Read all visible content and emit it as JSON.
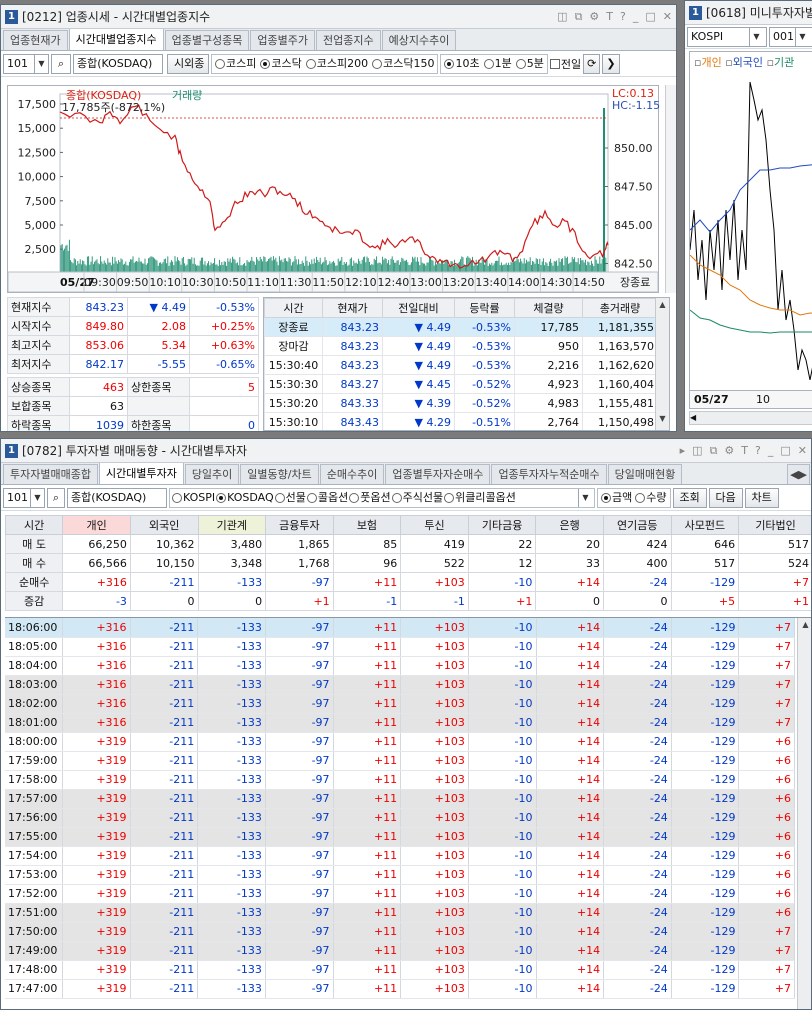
{
  "win1": {
    "no": "1",
    "title": "[0212] 업종시세 - 시간대별업종지수",
    "tabs": [
      "업종현재가",
      "시간대별업종지수",
      "업종별구성종목",
      "업종별주가",
      "전업종지수",
      "예상지수추이"
    ],
    "code": "101",
    "search_name": "종합(KOSDAQ)",
    "market_button": "시외종",
    "radios_market": [
      {
        "label": "코스피",
        "on": false
      },
      {
        "label": "코스닥",
        "on": true
      },
      {
        "label": "코스피200",
        "on": false
      },
      {
        "label": "코스닥150",
        "on": false
      }
    ],
    "radios_interval": [
      {
        "label": "10초",
        "on": true
      },
      {
        "label": "1분",
        "on": false
      },
      {
        "label": "5분",
        "on": false
      }
    ],
    "prev_day_label": "전일",
    "chart": {
      "legend_name": "종합(KOSDAQ)",
      "legend_volume": "거래량",
      "current_label": "17,785주(-872,1%)",
      "lc": "LC:0.13",
      "hc": "HC:-1.15",
      "left_ticks": [
        "17,500",
        "15,000",
        "12,500",
        "10,000",
        "7,500",
        "5,000",
        "2,500"
      ],
      "right_ticks": [
        "850.00",
        "847.50",
        "845.00",
        "842.50"
      ],
      "x_date": "05/27",
      "x_ticks": [
        "09:30",
        "09:50",
        "10:10",
        "10:30",
        "10:50",
        "11:10",
        "11:30",
        "11:50",
        "12:10",
        "12:40",
        "13:00",
        "13:20",
        "13:40",
        "14:00",
        "14:30",
        "14:50"
      ],
      "x_end": "장종료"
    },
    "summary": [
      {
        "label": "현재지수",
        "val": "843.23",
        "arrow": "▼",
        "chg": "4.49",
        "pct": "-0.53%",
        "color": "dn"
      },
      {
        "label": "시작지수",
        "val": "849.80",
        "arrow": "",
        "chg": "2.08",
        "pct": "+0.25%",
        "color": "up"
      },
      {
        "label": "최고지수",
        "val": "853.06",
        "arrow": "",
        "chg": "5.34",
        "pct": "+0.63%",
        "color": "up"
      },
      {
        "label": "최저지수",
        "val": "842.17",
        "arrow": "",
        "chg": "-5.55",
        "pct": "-0.65%",
        "color": "dn"
      }
    ],
    "counts": [
      {
        "l1": "상승종목",
        "v1": "463",
        "l2": "상한종목",
        "v2": "5",
        "c1": "up",
        "c2": "up"
      },
      {
        "l1": "보합종목",
        "v1": "63",
        "l2": "",
        "v2": "",
        "c1": "",
        "c2": ""
      },
      {
        "l1": "하락종목",
        "v1": "1039",
        "l2": "하한종목",
        "v2": "0",
        "c1": "dn",
        "c2": "dn"
      }
    ],
    "table_headers": [
      "시간",
      "현재가",
      "전일대비",
      "등락률",
      "체결량",
      "총거래량"
    ],
    "table_rows": [
      {
        "t": "장종료",
        "p": "843.23",
        "a": "▼",
        "d": "4.49",
        "r": "-0.53%",
        "v": "17,785",
        "tv": "1,181,355"
      },
      {
        "t": "장마감",
        "p": "843.23",
        "a": "▼",
        "d": "4.49",
        "r": "-0.53%",
        "v": "950",
        "tv": "1,163,570"
      },
      {
        "t": "15:30:40",
        "p": "843.23",
        "a": "▼",
        "d": "4.49",
        "r": "-0.53%",
        "v": "2,216",
        "tv": "1,162,620"
      },
      {
        "t": "15:30:30",
        "p": "843.27",
        "a": "▼",
        "d": "4.45",
        "r": "-0.52%",
        "v": "4,923",
        "tv": "1,160,404"
      },
      {
        "t": "15:30:20",
        "p": "843.33",
        "a": "▼",
        "d": "4.39",
        "r": "-0.52%",
        "v": "4,983",
        "tv": "1,155,481"
      },
      {
        "t": "15:30:10",
        "p": "843.43",
        "a": "▼",
        "d": "4.29",
        "r": "-0.51%",
        "v": "2,764",
        "tv": "1,150,498"
      }
    ]
  },
  "win2": {
    "no": "1",
    "title": "[0618] 미니투자자별",
    "index": "KOSPI",
    "code": "001",
    "legend": [
      "개인",
      "외국인",
      "기관"
    ],
    "x_date": "05/27",
    "x_tick": "10"
  },
  "win3": {
    "no": "1",
    "title": "[0782] 투자자별 매매동향 - 시간대별투자자",
    "tabs": [
      "투자자별매매종합",
      "시간대별투자자",
      "당일추이",
      "일별동향/차트",
      "순매수추이",
      "업종별투자자순매수",
      "업종투자자누적순매수",
      "당일매매현황"
    ],
    "code": "101",
    "search_name": "종합(KOSDAQ)",
    "radios_market": [
      {
        "label": "KOSPI",
        "on": false
      },
      {
        "label": "KOSDAQ",
        "on": true
      },
      {
        "label": "선물",
        "on": false
      },
      {
        "label": "콜옵션",
        "on": false
      },
      {
        "label": "풋옵션",
        "on": false
      },
      {
        "label": "주식선물",
        "on": false
      },
      {
        "label": "위클리콜옵션",
        "on": false
      }
    ],
    "radios_unit": [
      {
        "label": "금액",
        "on": true
      },
      {
        "label": "수량",
        "on": false
      }
    ],
    "buttons": [
      "조회",
      "다음",
      "차트"
    ],
    "headers": [
      "시간",
      "개인",
      "외국인",
      "기관계",
      "금융투자",
      "보험",
      "투신",
      "기타금융",
      "은행",
      "연기금등",
      "사모펀드",
      "기타법인"
    ],
    "summary_rows": [
      [
        "매 도",
        "66,250",
        "10,362",
        "3,480",
        "1,865",
        "85",
        "419",
        "22",
        "20",
        "424",
        "646",
        "517"
      ],
      [
        "매 수",
        "66,566",
        "10,150",
        "3,348",
        "1,768",
        "96",
        "522",
        "12",
        "33",
        "400",
        "517",
        "524"
      ],
      [
        "순매수",
        "+316",
        "-211",
        "-133",
        "-97",
        "+11",
        "+103",
        "-10",
        "+14",
        "-24",
        "-129",
        "+7"
      ],
      [
        "증감",
        "-3",
        "0",
        "0",
        "+1",
        "-1",
        "-1",
        "+1",
        "0",
        "0",
        "+5",
        "+1"
      ]
    ],
    "rows": [
      [
        "18:06:00",
        "+316",
        "-211",
        "-133",
        "-97",
        "+11",
        "+103",
        "-10",
        "+14",
        "-24",
        "-129",
        "+7"
      ],
      [
        "18:05:00",
        "+316",
        "-211",
        "-133",
        "-97",
        "+11",
        "+103",
        "-10",
        "+14",
        "-24",
        "-129",
        "+7"
      ],
      [
        "18:04:00",
        "+316",
        "-211",
        "-133",
        "-97",
        "+11",
        "+103",
        "-10",
        "+14",
        "-24",
        "-129",
        "+7"
      ],
      [
        "18:03:00",
        "+316",
        "-211",
        "-133",
        "-97",
        "+11",
        "+103",
        "-10",
        "+14",
        "-24",
        "-129",
        "+7"
      ],
      [
        "18:02:00",
        "+316",
        "-211",
        "-133",
        "-97",
        "+11",
        "+103",
        "-10",
        "+14",
        "-24",
        "-129",
        "+7"
      ],
      [
        "18:01:00",
        "+316",
        "-211",
        "-133",
        "-97",
        "+11",
        "+103",
        "-10",
        "+14",
        "-24",
        "-129",
        "+7"
      ],
      [
        "18:00:00",
        "+319",
        "-211",
        "-133",
        "-97",
        "+11",
        "+103",
        "-10",
        "+14",
        "-24",
        "-129",
        "+6"
      ],
      [
        "17:59:00",
        "+319",
        "-211",
        "-133",
        "-97",
        "+11",
        "+103",
        "-10",
        "+14",
        "-24",
        "-129",
        "+6"
      ],
      [
        "17:58:00",
        "+319",
        "-211",
        "-133",
        "-97",
        "+11",
        "+103",
        "-10",
        "+14",
        "-24",
        "-129",
        "+6"
      ],
      [
        "17:57:00",
        "+319",
        "-211",
        "-133",
        "-97",
        "+11",
        "+103",
        "-10",
        "+14",
        "-24",
        "-129",
        "+6"
      ],
      [
        "17:56:00",
        "+319",
        "-211",
        "-133",
        "-97",
        "+11",
        "+103",
        "-10",
        "+14",
        "-24",
        "-129",
        "+6"
      ],
      [
        "17:55:00",
        "+319",
        "-211",
        "-133",
        "-97",
        "+11",
        "+103",
        "-10",
        "+14",
        "-24",
        "-129",
        "+6"
      ],
      [
        "17:54:00",
        "+319",
        "-211",
        "-133",
        "-97",
        "+11",
        "+103",
        "-10",
        "+14",
        "-24",
        "-129",
        "+6"
      ],
      [
        "17:53:00",
        "+319",
        "-211",
        "-133",
        "-97",
        "+11",
        "+103",
        "-10",
        "+14",
        "-24",
        "-129",
        "+6"
      ],
      [
        "17:52:00",
        "+319",
        "-211",
        "-133",
        "-97",
        "+11",
        "+103",
        "-10",
        "+14",
        "-24",
        "-129",
        "+6"
      ],
      [
        "17:51:00",
        "+319",
        "-211",
        "-133",
        "-97",
        "+11",
        "+103",
        "-10",
        "+14",
        "-24",
        "-129",
        "+6"
      ],
      [
        "17:50:00",
        "+319",
        "-211",
        "-133",
        "-97",
        "+11",
        "+103",
        "-10",
        "+14",
        "-24",
        "-129",
        "+7"
      ],
      [
        "17:49:00",
        "+319",
        "-211",
        "-133",
        "-97",
        "+11",
        "+103",
        "-10",
        "+14",
        "-24",
        "-129",
        "+7"
      ],
      [
        "17:48:00",
        "+319",
        "-211",
        "-133",
        "-97",
        "+11",
        "+103",
        "-10",
        "+14",
        "-24",
        "-129",
        "+7"
      ],
      [
        "17:47:00",
        "+319",
        "-211",
        "-133",
        "-97",
        "+11",
        "+103",
        "-10",
        "+14",
        "-24",
        "-129",
        "+7"
      ]
    ]
  }
}
